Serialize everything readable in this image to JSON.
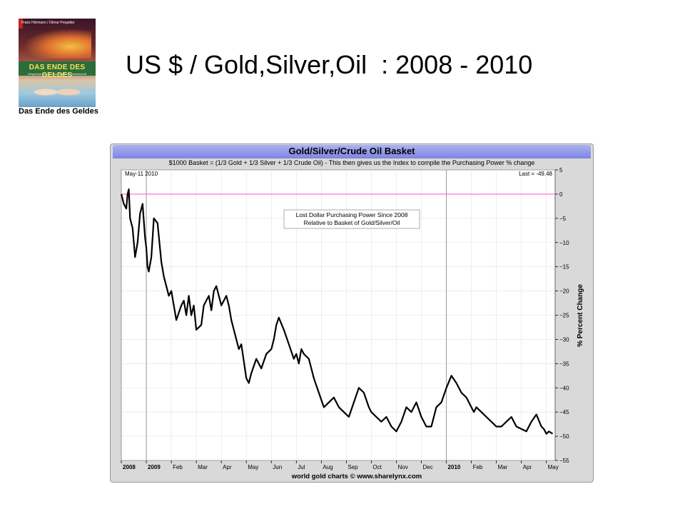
{
  "slide": {
    "title": "US $ / Gold,Silver,Oil  : 2008 - 2010"
  },
  "book": {
    "authors": "Franz Hörmann / Otmar Pregetter",
    "title": "DAS ENDE DES GELDES",
    "subtitle": "Wegweiser in eine ökonomiefreie Gesellschaft",
    "caption": "Das Ende des Geldes"
  },
  "chart_data": {
    "type": "line",
    "title": "Gold/Silver/Crude Oil Basket",
    "subtitle": "$1000 Basket = (1/3 Gold + 1/3 Silver + 1/3 Crude Oil) - This then gives us the Index to compile the Purchasing Power % change",
    "date_label": "May-11  2010",
    "last_label": "Last = -49.48",
    "annotation": [
      "Lost Dollar Purchasing Power Since 2008",
      "Relative to Basket of Gold/Silver/Oil"
    ],
    "ylabel": "% Percent Change",
    "footer": "world gold charts © www.sharelynx.com",
    "ylim": [
      -55,
      5
    ],
    "yticks": [
      5,
      0,
      -5,
      -10,
      -15,
      -20,
      -25,
      -30,
      -35,
      -40,
      -45,
      -50,
      -55
    ],
    "xticks": [
      "2008",
      "2009",
      "Feb",
      "Mar",
      "Apr",
      "May",
      "Jun",
      "Jul",
      "Aug",
      "Sep",
      "Oct",
      "Nov",
      "Dec",
      "2010",
      "Feb",
      "Mar",
      "Apr",
      "May"
    ],
    "xticks_bold": [
      true,
      true,
      false,
      false,
      false,
      false,
      false,
      false,
      false,
      false,
      false,
      false,
      false,
      true,
      false,
      false,
      false,
      false
    ],
    "xlim": [
      0,
      17.35
    ],
    "reference_line": 0,
    "series": [
      {
        "x": [
          0,
          0.1,
          0.2,
          0.25,
          0.3,
          0.35,
          0.45,
          0.55,
          0.65,
          0.75,
          0.85,
          0.95,
          1.0,
          1.05,
          1.1,
          1.2,
          1.3,
          1.45,
          1.6,
          1.7,
          1.8,
          1.9,
          2.0,
          2.2,
          2.4,
          2.5,
          2.6,
          2.7,
          2.8,
          2.9,
          3.0,
          3.2,
          3.3,
          3.4,
          3.5,
          3.6,
          3.7,
          3.8,
          4.0,
          4.2,
          4.3,
          4.4,
          4.5,
          4.6,
          4.7,
          4.8,
          5.0,
          5.1,
          5.2,
          5.4,
          5.6,
          5.8,
          6.0,
          6.1,
          6.2,
          6.3,
          6.5,
          6.7,
          6.9,
          7.0,
          7.1,
          7.2,
          7.3,
          7.5,
          7.6,
          7.7,
          7.9,
          8.1,
          8.3,
          8.5,
          8.7,
          8.9,
          9.1,
          9.3,
          9.5,
          9.7,
          9.9,
          10.0,
          10.2,
          10.4,
          10.6,
          10.8,
          11.0,
          11.2,
          11.4,
          11.6,
          11.8,
          12.0,
          12.2,
          12.4,
          12.6,
          12.8,
          13.0,
          13.2,
          13.4,
          13.6,
          13.8,
          14.0,
          14.1,
          14.2,
          14.4,
          14.6,
          14.8,
          15.0,
          15.2,
          15.4,
          15.6,
          15.8,
          16.0,
          16.2,
          16.4,
          16.6,
          16.8,
          16.9,
          17.0,
          17.1,
          17.25
        ],
        "y": [
          0,
          -2,
          -3,
          0,
          1,
          -5,
          -7,
          -13,
          -10,
          -4,
          -2,
          -9,
          -11,
          -15,
          -16,
          -13,
          -5,
          -6,
          -14,
          -17,
          -19,
          -21,
          -20,
          -26,
          -23,
          -22,
          -25,
          -21,
          -25,
          -23,
          -28,
          -27,
          -23,
          -22,
          -21,
          -24,
          -20,
          -19,
          -23,
          -21,
          -23,
          -26,
          -28,
          -30,
          -32,
          -31,
          -38,
          -39,
          -37,
          -34,
          -36,
          -33,
          -32,
          -30,
          -27,
          -25.5,
          -28,
          -31,
          -34,
          -33,
          -35,
          -32,
          -33,
          -34,
          -36,
          -38,
          -41,
          -44,
          -43,
          -42,
          -44,
          -45,
          -46,
          -43,
          -40,
          -41,
          -44,
          -45,
          -46,
          -47,
          -46,
          -48,
          -49,
          -47,
          -44,
          -45,
          -43,
          -46,
          -48,
          -48,
          -44,
          -43,
          -40,
          -37.5,
          -39,
          -41,
          -42,
          -44,
          -45,
          -44,
          -45,
          -46,
          -47,
          -48,
          -48,
          -47,
          -46,
          -48,
          -48.5,
          -49,
          -47,
          -45.5,
          -48,
          -48.5,
          -49.5,
          -49,
          -49.48
        ]
      }
    ],
    "colors": {
      "line": "#000000",
      "reference_line": "#ff66cc",
      "header_top": "#aab2f0",
      "header_bottom": "#7c86e0",
      "frame": "#d9d9d9"
    }
  }
}
